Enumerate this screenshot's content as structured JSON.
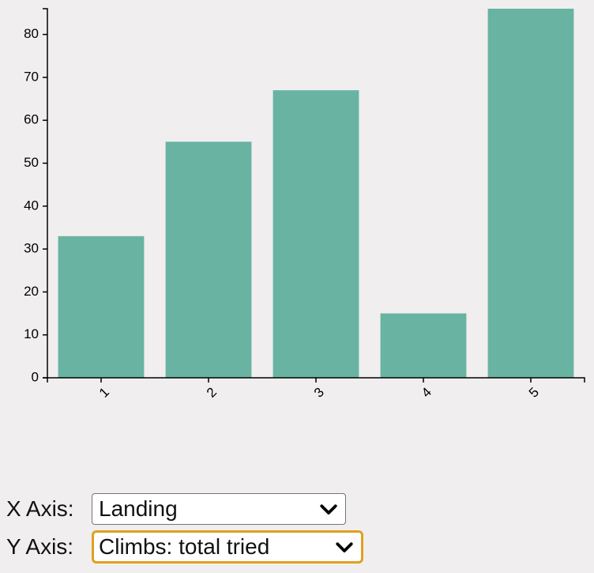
{
  "chart_data": {
    "type": "bar",
    "categories": [
      "1",
      "2",
      "3",
      "4",
      "5"
    ],
    "values": [
      33,
      55,
      67,
      15,
      86
    ],
    "ylim": [
      0,
      86
    ],
    "yticks": [
      0,
      10,
      20,
      30,
      40,
      50,
      60,
      70,
      80
    ],
    "bar_color": "#69b3a2",
    "grid": false
  },
  "controls": {
    "x_axis": {
      "label": "X Axis:",
      "value": "Landing"
    },
    "y_axis": {
      "label": "Y Axis:",
      "value": "Climbs: total tried"
    }
  },
  "colors": {
    "background": "#f0eeef",
    "focus_ring": "#e0a020"
  }
}
